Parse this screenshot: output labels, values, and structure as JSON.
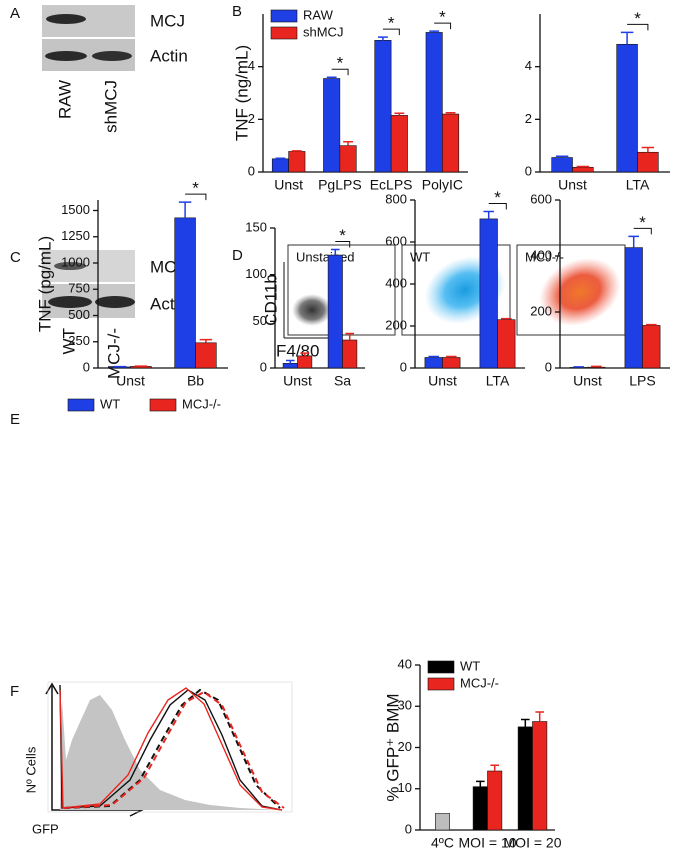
{
  "panel_labels": [
    "A",
    "B",
    "C",
    "D",
    "E",
    "F"
  ],
  "blots": [
    {
      "labels": [
        "MCJ",
        "Actin"
      ],
      "lanes": [
        "RAW",
        "shMCJ"
      ]
    },
    {
      "labels": [
        "MCJ",
        "Actin"
      ],
      "lanes": [
        "WT",
        "MCJ-/-"
      ]
    }
  ],
  "flow": {
    "y_label": "CD11b",
    "x_label": "F4/80",
    "plots": [
      "Unstained",
      "WT",
      "MCJ-/-"
    ]
  },
  "histogram": {
    "y_label": "Nº Cells",
    "x_label": "GFP"
  },
  "chart_data": [
    {
      "type": "bar",
      "y_label": "TNF (ng/mL)",
      "categories": [
        "Unst",
        "PgLPS",
        "EcLPS",
        "PolyIC"
      ],
      "series": [
        {
          "name": "RAW",
          "color": "#1f3fe6",
          "values": [
            0.5,
            3.55,
            5.0,
            5.3
          ],
          "errors": [
            0.02,
            0.05,
            0.12,
            0.05
          ]
        },
        {
          "name": "shMCJ",
          "color": "#e8251f",
          "values": [
            0.78,
            1.0,
            2.15,
            2.2
          ],
          "errors": [
            0.02,
            0.15,
            0.08,
            0.05
          ]
        }
      ],
      "significance": [
        null,
        "*",
        "*",
        "*"
      ],
      "legend": "upper left",
      "ylim": [
        0,
        6
      ],
      "yticks": [
        0,
        2,
        4
      ]
    },
    {
      "type": "bar",
      "categories": [
        "Unst",
        "LTA"
      ],
      "series": [
        {
          "color": "#1f3fe6",
          "values": [
            0.55,
            4.85
          ],
          "errors": [
            0.05,
            0.45
          ]
        },
        {
          "color": "#e8251f",
          "values": [
            0.18,
            0.75
          ],
          "errors": [
            0.03,
            0.18
          ]
        }
      ],
      "significance": [
        null,
        "*"
      ],
      "ylim": [
        0,
        6
      ],
      "yticks": [
        0,
        2,
        4
      ]
    },
    {
      "type": "bar",
      "y_label": "TNF (pg/mL)",
      "categories": [
        "Unst",
        "Bb"
      ],
      "series": [
        {
          "name": "WT",
          "color": "#1f3fe6",
          "values": [
            10,
            1430
          ],
          "errors": [
            3,
            150
          ]
        },
        {
          "name": "MCJ-/-",
          "color": "#e8251f",
          "values": [
            15,
            240
          ],
          "errors": [
            3,
            30
          ]
        }
      ],
      "significance": [
        null,
        "*"
      ],
      "legend": "below",
      "ylim": [
        0,
        1600
      ],
      "yticks": [
        0,
        250,
        500,
        750,
        1000,
        1250,
        1500
      ]
    },
    {
      "type": "bar",
      "categories": [
        "Unst",
        "Sa"
      ],
      "series": [
        {
          "color": "#1f3fe6",
          "values": [
            5,
            121
          ],
          "errors": [
            3,
            6
          ]
        },
        {
          "color": "#e8251f",
          "values": [
            13,
            30
          ],
          "errors": [
            3,
            7
          ]
        }
      ],
      "significance": [
        null,
        "*"
      ],
      "ylim": [
        0,
        150
      ],
      "yticks": [
        0,
        50,
        100,
        150
      ]
    },
    {
      "type": "bar",
      "categories": [
        "Unst",
        "LTA"
      ],
      "series": [
        {
          "color": "#1f3fe6",
          "values": [
            50,
            710
          ],
          "errors": [
            5,
            35
          ]
        },
        {
          "color": "#e8251f",
          "values": [
            50,
            230
          ],
          "errors": [
            5,
            5
          ]
        }
      ],
      "significance": [
        null,
        "*"
      ],
      "ylim": [
        0,
        800
      ],
      "yticks": [
        0,
        200,
        400,
        600,
        800
      ]
    },
    {
      "type": "bar",
      "categories": [
        "Unst",
        "LPS"
      ],
      "series": [
        {
          "color": "#1f3fe6",
          "values": [
            2,
            430
          ],
          "errors": [
            2,
            40
          ]
        },
        {
          "color": "#e8251f",
          "values": [
            3,
            152
          ],
          "errors": [
            3,
            3
          ]
        }
      ],
      "significance": [
        null,
        "*"
      ],
      "ylim": [
        0,
        600
      ],
      "yticks": [
        0,
        200,
        400,
        600
      ]
    },
    {
      "type": "bar",
      "y_label": "% GFP⁺ BMM",
      "categories": [
        "4ºC",
        "MOI = 10",
        "MOI = 20"
      ],
      "series": [
        {
          "color": "#bdbdbd",
          "values": [
            4,
            null,
            null
          ],
          "errors": [
            null,
            null,
            null
          ]
        },
        {
          "name": "WT",
          "color": "#000000",
          "values": [
            null,
            10.5,
            25
          ],
          "errors": [
            null,
            1.3,
            1.8
          ]
        },
        {
          "name": "MCJ-/-",
          "color": "#e8251f",
          "values": [
            null,
            14.3,
            26.3
          ],
          "errors": [
            null,
            1.4,
            2.3
          ]
        }
      ],
      "legend": "upper left",
      "ylim": [
        0,
        40
      ],
      "yticks": [
        0,
        10,
        20,
        30,
        40
      ]
    }
  ]
}
